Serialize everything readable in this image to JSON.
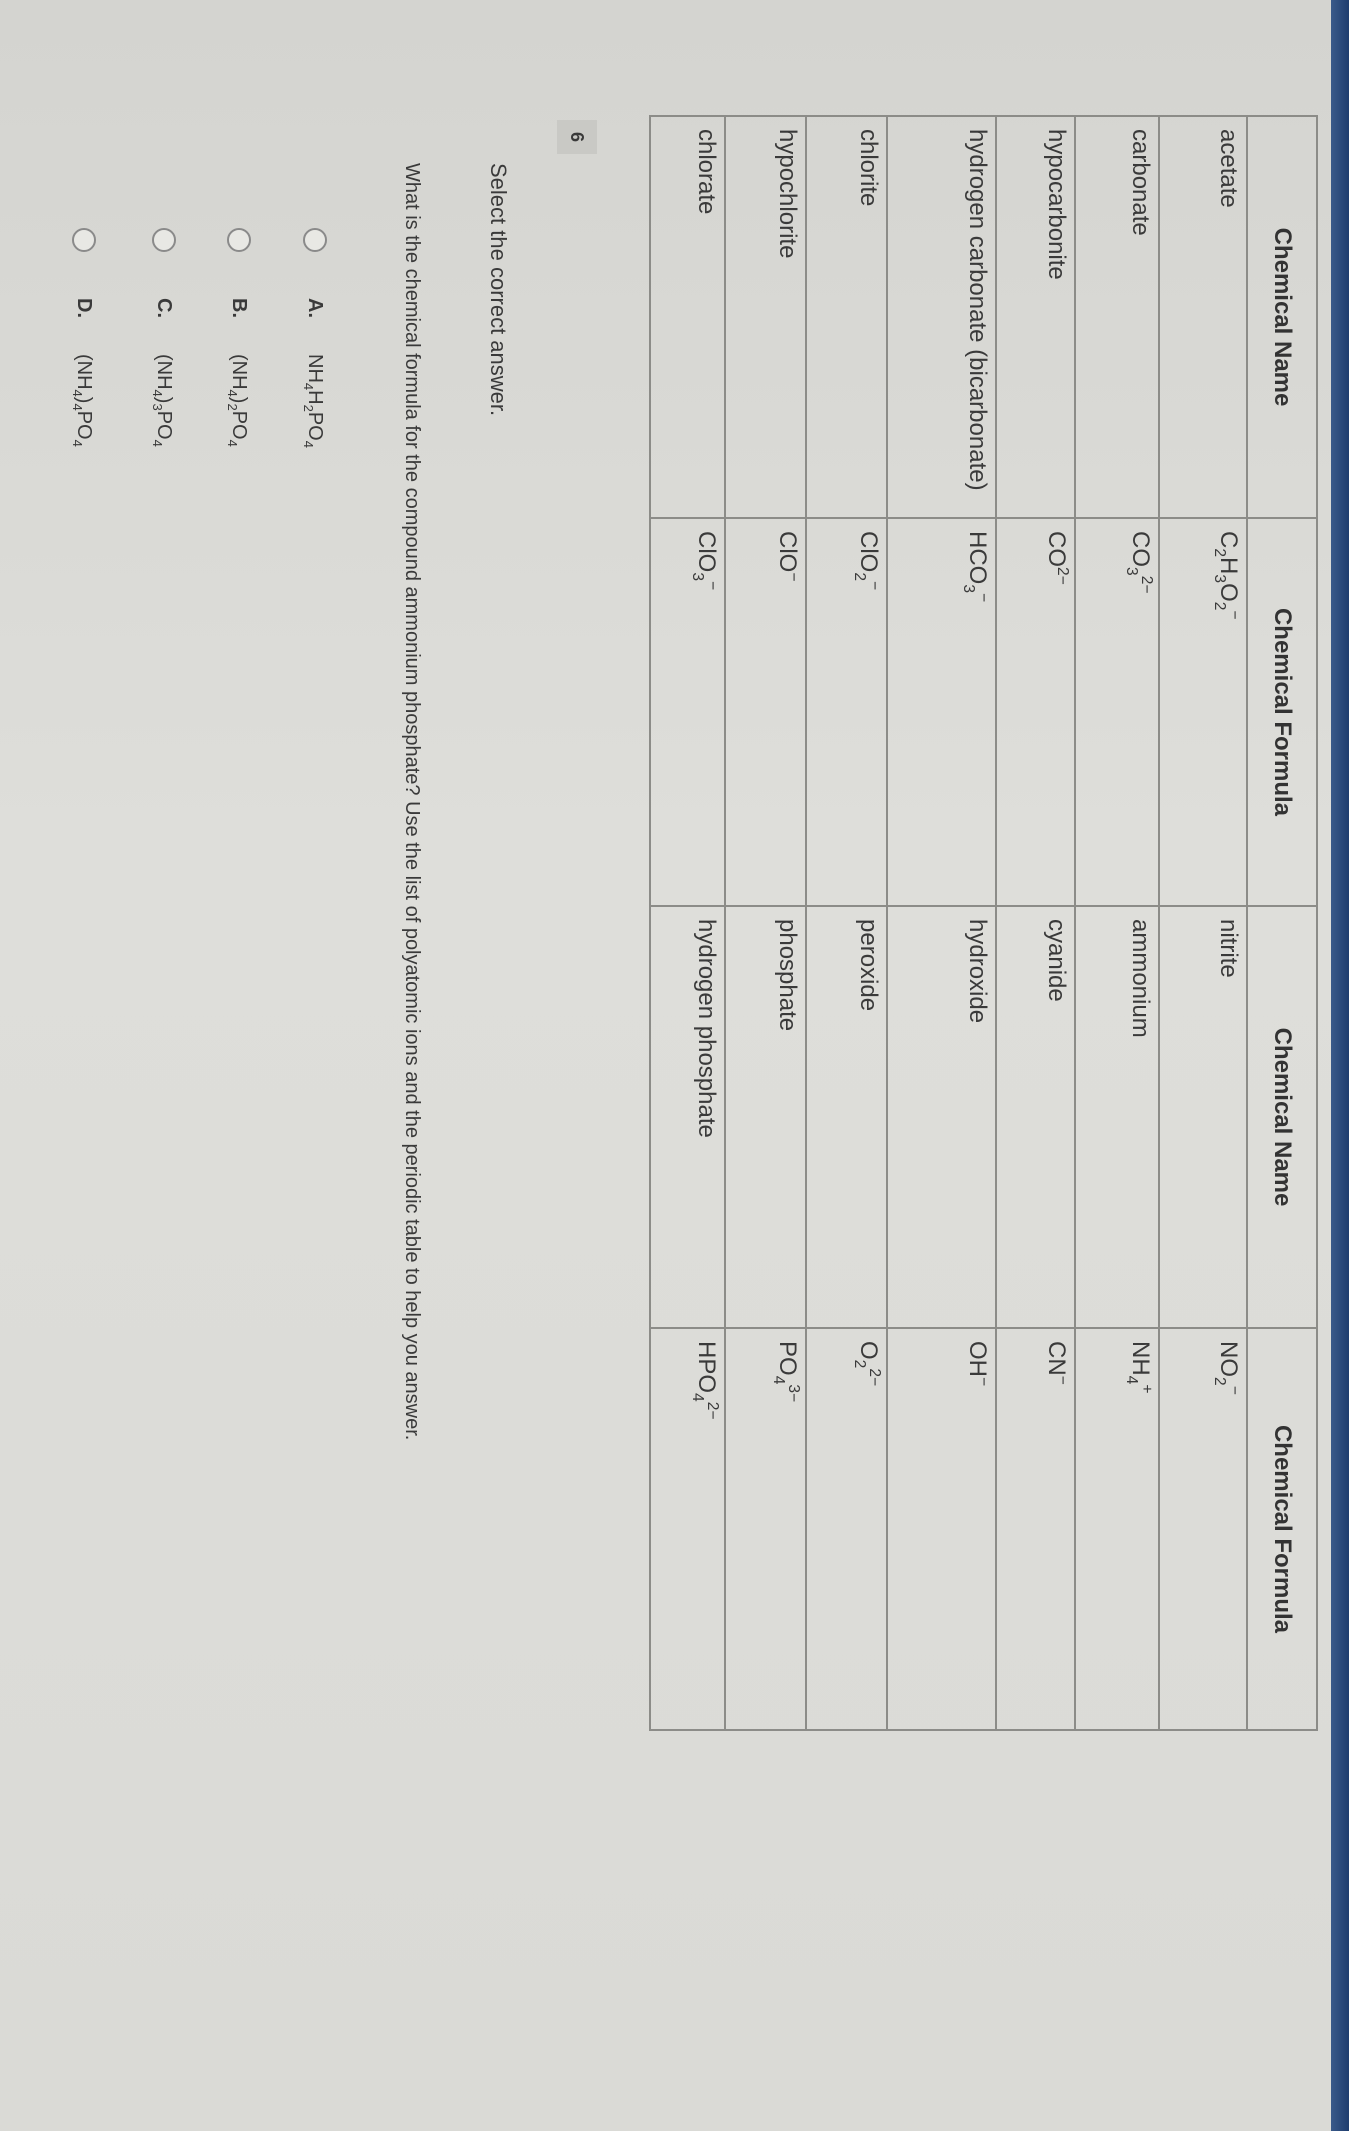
{
  "table": {
    "headers": [
      "Chemical Name",
      "Chemical Formula",
      "Chemical Name",
      "Chemical Formula"
    ],
    "rows": [
      {
        "name1": "acetate",
        "formula1": [
          [
            "C",
            "2",
            ""
          ],
          [
            "H",
            "3",
            ""
          ],
          [
            "O",
            "2",
            "−"
          ]
        ],
        "name2": "nitrite",
        "formula2": [
          [
            "NO",
            "2",
            "−"
          ]
        ]
      },
      {
        "name1": "carbonate",
        "formula1": [
          [
            "CO",
            "3",
            "2−"
          ]
        ],
        "name2": "ammonium",
        "formula2": [
          [
            "NH",
            "4",
            "+"
          ]
        ]
      },
      {
        "name1": "hypocarbonite",
        "formula1": [
          [
            "CO",
            "",
            "2−"
          ]
        ],
        "name2": "cyanide",
        "formula2": [
          [
            "CN",
            "",
            "−"
          ]
        ]
      },
      {
        "name1": "hydrogen carbonate (bicarbonate)",
        "formula1": [
          [
            "HCO",
            "3",
            "−"
          ]
        ],
        "name2": "hydroxide",
        "formula2": [
          [
            "OH",
            "",
            "−"
          ]
        ]
      },
      {
        "name1": "chlorite",
        "formula1": [
          [
            "ClO",
            "2",
            "−"
          ]
        ],
        "name2": "peroxide",
        "formula2": [
          [
            "O",
            "2",
            "2−"
          ]
        ]
      },
      {
        "name1": "hypochlorite",
        "formula1": [
          [
            "ClO",
            "",
            "−"
          ]
        ],
        "name2": "phosphate",
        "formula2": [
          [
            "PO",
            "4",
            "3−"
          ]
        ]
      },
      {
        "name1": "chlorate",
        "formula1": [
          [
            "ClO",
            "3",
            "−"
          ]
        ],
        "name2": "hydrogen phosphate",
        "formula2": [
          [
            "HPO",
            "4",
            "2−"
          ]
        ]
      }
    ]
  },
  "question_number": "6",
  "instruction": "Select the correct answer.",
  "question": "What is the chemical formula for the compound ammonium phosphate? Use the list of polyatomic ions and the periodic table to help you answer.",
  "options": [
    {
      "letter": "A.",
      "formula": [
        [
          "NH",
          "4",
          ""
        ],
        [
          "H",
          "2",
          ""
        ],
        [
          "PO",
          "4",
          ""
        ]
      ]
    },
    {
      "letter": "B.",
      "formula": [
        [
          "(NH",
          "4",
          ""
        ],
        [
          ")",
          "2",
          ""
        ],
        [
          "PO",
          "4",
          ""
        ]
      ]
    },
    {
      "letter": "C.",
      "formula": [
        [
          "(NH",
          "4",
          ""
        ],
        [
          ")",
          "3",
          ""
        ],
        [
          "PO",
          "4",
          ""
        ]
      ]
    },
    {
      "letter": "D.",
      "formula": [
        [
          "(NH",
          "4",
          ""
        ],
        [
          ")",
          "4",
          ""
        ],
        [
          "PO",
          "4",
          ""
        ]
      ]
    }
  ],
  "colors": {
    "background": "#d9d9d5",
    "border": "#8c8c88",
    "bezel": "#1f3d6e"
  }
}
